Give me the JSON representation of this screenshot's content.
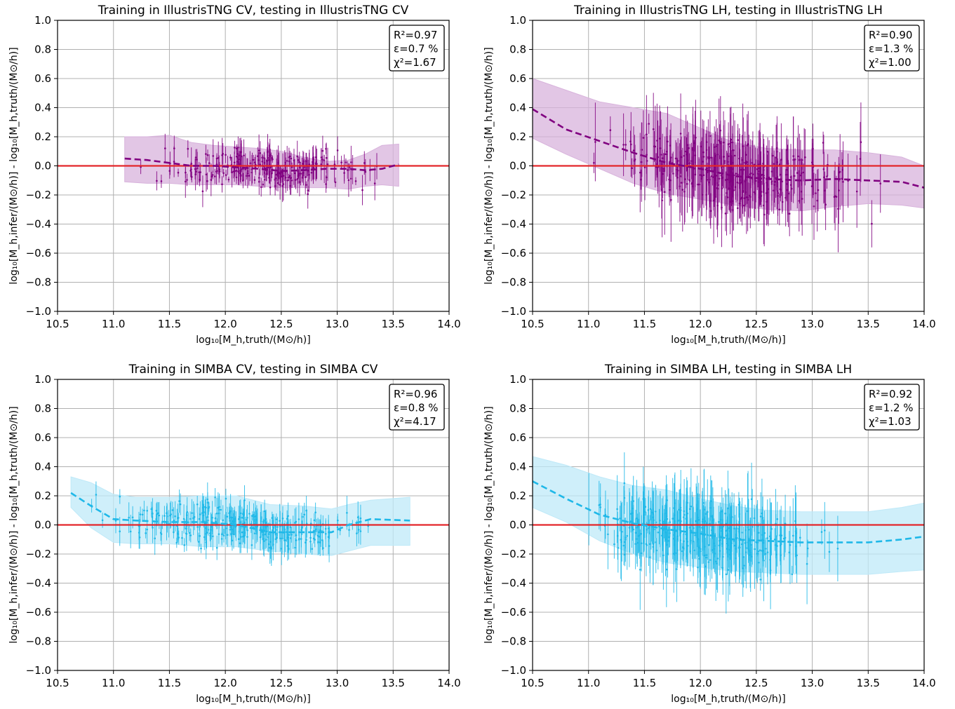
{
  "figure": {
    "panels": [
      {
        "title": "Training in IllustrisTNG CV, testing in IllustrisTNG CV",
        "stats": [
          "R²=0.97",
          "ε=0.7 %",
          "χ²=1.67"
        ]
      },
      {
        "title": "Training in IllustrisTNG LH, testing in IllustrisTNG LH",
        "stats": [
          "R²=0.90",
          "ε=1.3 %",
          "χ²=1.00"
        ]
      },
      {
        "title": "Training in SIMBA CV, testing in SIMBA CV",
        "stats": [
          "R²=0.96",
          "ε=0.8 %",
          "χ²=4.17"
        ]
      },
      {
        "title": "Training in SIMBA LH, testing in SIMBA LH",
        "stats": [
          "R²=0.92",
          "ε=1.2 %",
          "χ²=1.03"
        ]
      }
    ],
    "xlabel": "log₁₀[M_h,truth/(M⊙/h)]",
    "ylabel": "log₁₀[M_h,infer/(M⊙/h)] - log₁₀[M_h,truth/(M⊙/h)]",
    "xticks": [
      "10.5",
      "11.0",
      "11.5",
      "12.0",
      "12.5",
      "13.0",
      "13.5",
      "14.0"
    ],
    "yticks": [
      "1.0",
      "0.8",
      "0.6",
      "0.4",
      "0.2",
      "0.0",
      "−0.2",
      "−0.4",
      "−0.6",
      "−0.8",
      "−1.0"
    ]
  },
  "chart_data": [
    {
      "type": "scatter",
      "title": "Training in IllustrisTNG CV, testing in IllustrisTNG CV",
      "xlabel": "log₁₀[M_h,truth/(M⊙/h)]",
      "ylabel": "log₁₀[M_h,infer/(M⊙/h)] - log₁₀[M_h,truth/(M⊙/h)]",
      "xlim": [
        10.5,
        14.0
      ],
      "ylim": [
        -1.0,
        1.0
      ],
      "grid": true,
      "stats": {
        "R2": 0.97,
        "epsilon_percent": 0.7,
        "chi2": 1.67
      },
      "color": "#800080",
      "band_color": "#d8b3dc",
      "reference_line": {
        "y": 0.0,
        "color": "#e3262a"
      },
      "mean_curve": {
        "x": [
          11.1,
          11.3,
          11.5,
          11.7,
          11.9,
          12.1,
          12.3,
          12.5,
          12.7,
          12.9,
          13.1,
          13.25,
          13.4,
          13.55
        ],
        "y": [
          0.05,
          0.04,
          0.02,
          0.0,
          0.0,
          -0.01,
          -0.02,
          -0.035,
          -0.03,
          -0.02,
          -0.02,
          -0.03,
          -0.02,
          0.01
        ]
      },
      "band_upper": [
        0.2,
        0.2,
        0.21,
        0.16,
        0.14,
        0.13,
        0.12,
        0.1,
        0.06,
        0.03,
        0.04,
        0.08,
        0.14,
        0.15
      ],
      "band_lower": [
        -0.11,
        -0.12,
        -0.12,
        -0.13,
        -0.13,
        -0.13,
        -0.14,
        -0.15,
        -0.15,
        -0.15,
        -0.16,
        -0.14,
        -0.13,
        -0.14
      ],
      "points": {
        "x_range": [
          11.0,
          13.7
        ],
        "count": 260,
        "scatter_sd": 0.1,
        "err_range": [
          0.02,
          0.12
        ]
      }
    },
    {
      "type": "scatter",
      "title": "Training in IllustrisTNG LH, testing in IllustrisTNG LH",
      "xlabel": "log₁₀[M_h,truth/(M⊙/h)]",
      "ylabel": "log₁₀[M_h,infer/(M⊙/h)] - log₁₀[M_h,truth/(M⊙/h)]",
      "xlim": [
        10.5,
        14.0
      ],
      "ylim": [
        -1.0,
        1.0
      ],
      "grid": true,
      "stats": {
        "R2": 0.9,
        "epsilon_percent": 1.3,
        "chi2": 1.0
      },
      "color": "#800080",
      "band_color": "#d8b3dc",
      "reference_line": {
        "y": 0.0,
        "color": "#e3262a"
      },
      "mean_curve": {
        "x": [
          10.5,
          10.8,
          11.1,
          11.4,
          11.7,
          12.0,
          12.3,
          12.6,
          12.9,
          13.2,
          13.5,
          13.8,
          14.0
        ],
        "y": [
          0.39,
          0.25,
          0.17,
          0.09,
          0.02,
          -0.02,
          -0.07,
          -0.09,
          -0.1,
          -0.09,
          -0.1,
          -0.11,
          -0.15
        ]
      },
      "band_upper": [
        0.6,
        0.52,
        0.44,
        0.4,
        0.36,
        0.26,
        0.16,
        0.12,
        0.11,
        0.11,
        0.09,
        0.06,
        0.0
      ],
      "band_lower": [
        0.19,
        0.08,
        -0.02,
        -0.12,
        -0.19,
        -0.23,
        -0.27,
        -0.3,
        -0.31,
        -0.28,
        -0.26,
        -0.27,
        -0.29
      ],
      "points": {
        "x_range": [
          10.7,
          13.9
        ],
        "count": 380,
        "scatter_sd": 0.17,
        "err_range": [
          0.05,
          0.3
        ]
      }
    },
    {
      "type": "scatter",
      "title": "Training in SIMBA CV, testing in SIMBA CV",
      "xlabel": "log₁₀[M_h,truth/(M⊙/h)]",
      "ylabel": "log₁₀[M_h,infer/(M⊙/h)] - log₁₀[M_h,truth/(M⊙/h)]",
      "xlim": [
        10.5,
        14.0
      ],
      "ylim": [
        -1.0,
        1.0
      ],
      "grid": true,
      "stats": {
        "R2": 0.96,
        "epsilon_percent": 0.8,
        "chi2": 4.17
      },
      "color": "#1fb8e8",
      "band_color": "#bfe9f8",
      "reference_line": {
        "y": 0.0,
        "color": "#e3262a"
      },
      "mean_curve": {
        "x": [
          10.62,
          10.8,
          11.0,
          11.2,
          11.5,
          11.8,
          12.1,
          12.4,
          12.7,
          12.95,
          13.1,
          13.3,
          13.65
        ],
        "y": [
          0.22,
          0.13,
          0.04,
          0.03,
          0.02,
          0.02,
          0.0,
          -0.05,
          -0.05,
          -0.05,
          0.0,
          0.04,
          0.03
        ]
      },
      "band_upper": [
        0.33,
        0.29,
        0.21,
        0.19,
        0.19,
        0.2,
        0.2,
        0.14,
        0.13,
        0.11,
        0.14,
        0.17,
        0.19
      ],
      "band_lower": [
        0.12,
        -0.02,
        -0.12,
        -0.13,
        -0.13,
        -0.15,
        -0.15,
        -0.18,
        -0.2,
        -0.21,
        -0.18,
        -0.14,
        -0.14
      ],
      "points": {
        "x_range": [
          10.55,
          13.8
        ],
        "count": 320,
        "scatter_sd": 0.1,
        "err_range": [
          0.03,
          0.12
        ]
      }
    },
    {
      "type": "scatter",
      "title": "Training in SIMBA LH, testing in SIMBA LH",
      "xlabel": "log₁₀[M_h,truth/(M⊙/h)]",
      "ylabel": "log₁₀[M_h,infer/(M⊙/h)] - log₁₀[M_h,truth/(M⊙/h)]",
      "xlim": [
        10.5,
        14.0
      ],
      "ylim": [
        -1.0,
        1.0
      ],
      "grid": true,
      "stats": {
        "R2": 0.92,
        "epsilon_percent": 1.2,
        "chi2": 1.03
      },
      "color": "#1fb8e8",
      "band_color": "#bfe9f8",
      "reference_line": {
        "y": 0.0,
        "color": "#e3262a"
      },
      "mean_curve": {
        "x": [
          10.5,
          10.8,
          11.1,
          11.4,
          11.7,
          12.0,
          12.3,
          12.6,
          12.9,
          13.2,
          13.5,
          13.8,
          14.0
        ],
        "y": [
          0.3,
          0.18,
          0.07,
          0.01,
          -0.03,
          -0.06,
          -0.1,
          -0.11,
          -0.12,
          -0.12,
          -0.12,
          -0.1,
          -0.08
        ]
      },
      "band_upper": [
        0.47,
        0.41,
        0.33,
        0.27,
        0.24,
        0.18,
        0.13,
        0.1,
        0.09,
        0.09,
        0.09,
        0.12,
        0.15
      ],
      "band_lower": [
        0.12,
        0.02,
        -0.11,
        -0.2,
        -0.26,
        -0.29,
        -0.32,
        -0.33,
        -0.34,
        -0.34,
        -0.34,
        -0.32,
        -0.31
      ],
      "points": {
        "x_range": [
          10.55,
          13.5
        ],
        "count": 380,
        "scatter_sd": 0.15,
        "err_range": [
          0.05,
          0.28
        ]
      }
    }
  ]
}
